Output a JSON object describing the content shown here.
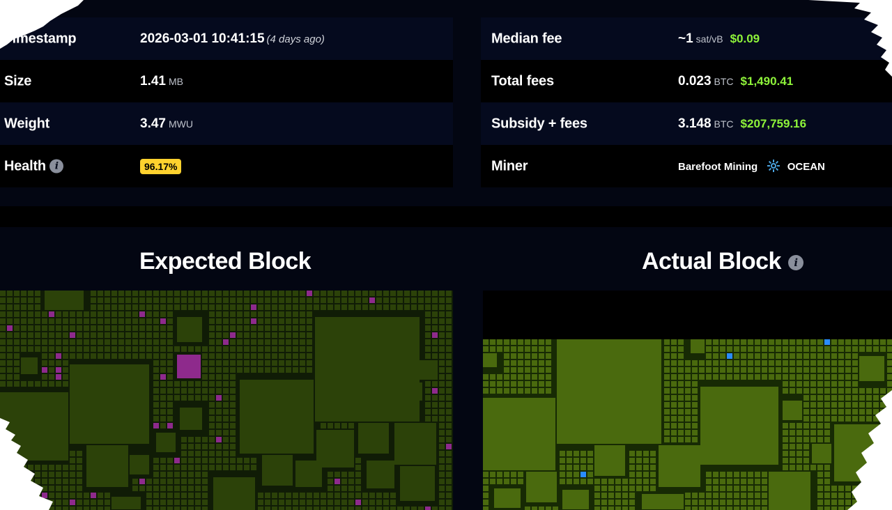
{
  "colors": {
    "background": "#030612",
    "usd_green": "#8ef33a",
    "health_badge": "#ffd22e",
    "expected_tx": "#2c4209",
    "expected_tx_purple": "#8e2a8c",
    "actual_tx": "#4a6a0e",
    "actual_tx_blue": "#2a8cff"
  },
  "left_rows": [
    {
      "label": "Timestamp",
      "value": "2026-03-01 10:41:15",
      "note": "(4 days ago)"
    },
    {
      "label": "Size",
      "value": "1.41",
      "unit": "MB"
    },
    {
      "label": "Weight",
      "value": "3.47",
      "unit": "MWU"
    },
    {
      "label": "Health",
      "info_icon": "info-icon",
      "badge": "96.17%"
    }
  ],
  "right_rows": [
    {
      "label": "Median fee",
      "value": "~1",
      "unit": "sat/vB",
      "usd": "$0.09"
    },
    {
      "label": "Total fees",
      "value": "0.023",
      "unit": "BTC",
      "usd": "$1,490.41"
    },
    {
      "label": "Subsidy + fees",
      "value": "3.148",
      "unit": "BTC",
      "usd": "$207,759.16"
    },
    {
      "label": "Miner",
      "miner_a": "Barefoot Mining",
      "miner_icon": "ocean-logo-icon",
      "miner_b": "OCEAN"
    }
  ],
  "sections": {
    "expected_title": "Expected Block",
    "actual_title": "Actual Block",
    "actual_info_icon": "info-icon"
  }
}
